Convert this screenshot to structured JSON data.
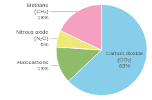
{
  "chart_data": {
    "type": "pie",
    "categories": [
      "Carbon dioxide\n(CO₂)",
      "Halocarbons",
      "Nitrous oxide\n(N₂O)",
      "Methane\n(CH₄)"
    ],
    "values": [
      63,
      13,
      6,
      18
    ],
    "value_labels": [
      "63%",
      "13%",
      "6%",
      "18%"
    ],
    "colors": [
      "#87CEEB",
      "#8FBC6A",
      "#EEE87A",
      "#F4A0BE"
    ],
    "data_labels": true
  }
}
